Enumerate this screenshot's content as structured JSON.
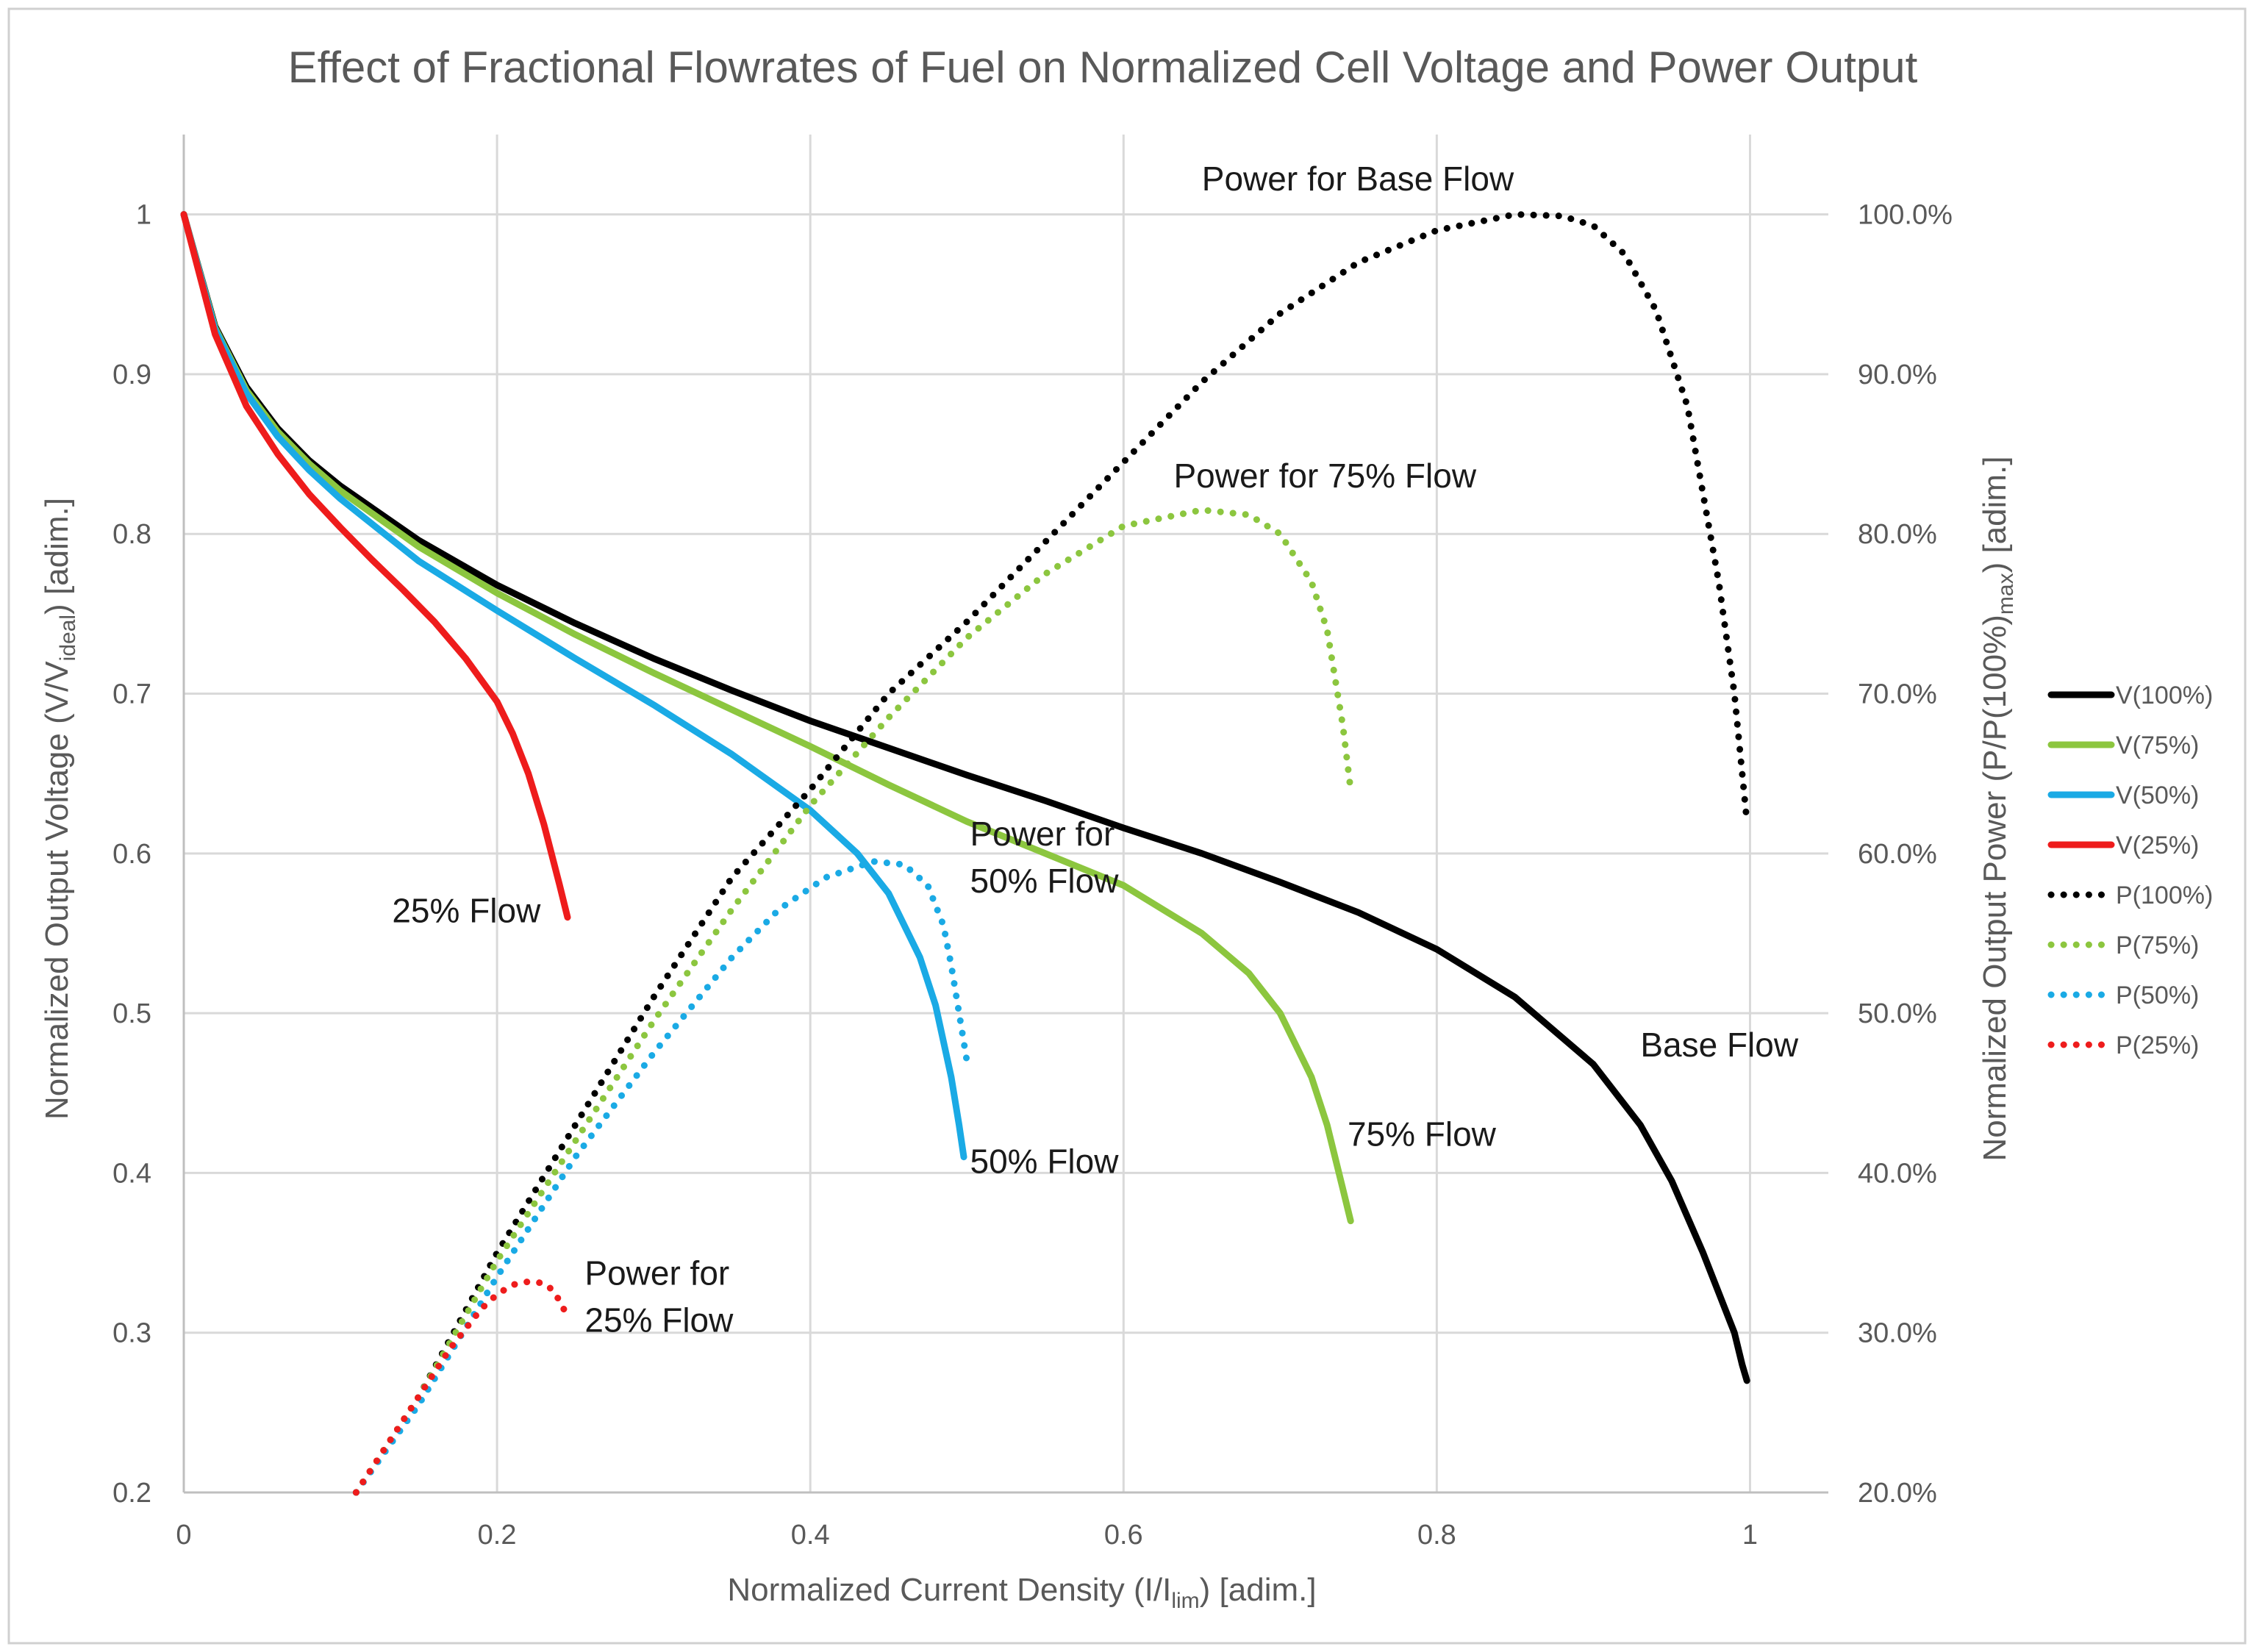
{
  "chart_data": {
    "type": "line",
    "title": "Effect of Fractional Flowrates of Fuel on Normalized Cell Voltage and Power Output",
    "xlabel": {
      "main": "Normalized Current Density (I/I",
      "sub": "lim",
      "tail": ") [adim.]"
    },
    "ylabel_left": {
      "main": "Normalized Output Voltage (V/V",
      "sub": "ideal",
      "tail": ")  [adim.]"
    },
    "ylabel_right": {
      "main": "Normalized Output Power (P/P(100%)",
      "sub": "max",
      "tail": ")  [adim.]"
    },
    "xlim": [
      0,
      1.05
    ],
    "ylim_left": [
      0.2,
      1.05
    ],
    "ylim_right": [
      20,
      105
    ],
    "x_ticks": [
      "0",
      "0.2",
      "0.4",
      "0.6",
      "0.8",
      "1"
    ],
    "x_tick_values": [
      0,
      0.2,
      0.4,
      0.6,
      0.8,
      1.0
    ],
    "y_left_ticks": [
      "0.2",
      "0.3",
      "0.4",
      "0.5",
      "0.6",
      "0.7",
      "0.8",
      "0.9",
      "1"
    ],
    "y_left_tick_values": [
      0.2,
      0.3,
      0.4,
      0.5,
      0.6,
      0.7,
      0.8,
      0.9,
      1.0
    ],
    "y_right_ticks": [
      "20.0%",
      "30.0%",
      "40.0%",
      "50.0%",
      "60.0%",
      "70.0%",
      "80.0%",
      "90.0%",
      "100.0%"
    ],
    "y_right_tick_values": [
      20,
      30,
      40,
      50,
      60,
      70,
      80,
      90,
      100
    ],
    "series": [
      {
        "name": "V(100%)",
        "axis": "left",
        "style": "solid",
        "color": "#000000",
        "x": [
          0,
          0.02,
          0.04,
          0.06,
          0.08,
          0.1,
          0.15,
          0.2,
          0.25,
          0.3,
          0.35,
          0.4,
          0.45,
          0.5,
          0.55,
          0.6,
          0.65,
          0.7,
          0.75,
          0.8,
          0.85,
          0.9,
          0.93,
          0.95,
          0.97,
          0.98,
          0.99,
          0.995,
          0.998
        ],
        "y": [
          1.0,
          0.93,
          0.892,
          0.866,
          0.846,
          0.83,
          0.796,
          0.768,
          0.744,
          0.722,
          0.702,
          0.683,
          0.666,
          0.649,
          0.633,
          0.616,
          0.6,
          0.582,
          0.563,
          0.54,
          0.51,
          0.468,
          0.43,
          0.395,
          0.35,
          0.325,
          0.3,
          0.28,
          0.27
        ]
      },
      {
        "name": "V(75%)",
        "axis": "left",
        "style": "solid",
        "color": "#8cc63f",
        "x": [
          0,
          0.02,
          0.04,
          0.06,
          0.08,
          0.1,
          0.15,
          0.2,
          0.25,
          0.3,
          0.35,
          0.4,
          0.45,
          0.5,
          0.55,
          0.6,
          0.65,
          0.68,
          0.7,
          0.72,
          0.73,
          0.74,
          0.745
        ],
        "y": [
          1.0,
          0.929,
          0.89,
          0.864,
          0.844,
          0.827,
          0.792,
          0.763,
          0.737,
          0.713,
          0.69,
          0.667,
          0.643,
          0.62,
          0.6,
          0.58,
          0.55,
          0.525,
          0.5,
          0.46,
          0.43,
          0.39,
          0.37
        ]
      },
      {
        "name": "V(50%)",
        "axis": "left",
        "style": "solid",
        "color": "#1aaae5",
        "x": [
          0,
          0.02,
          0.04,
          0.06,
          0.08,
          0.1,
          0.15,
          0.2,
          0.25,
          0.3,
          0.35,
          0.4,
          0.43,
          0.45,
          0.47,
          0.48,
          0.49,
          0.495,
          0.498
        ],
        "y": [
          1.0,
          0.928,
          0.888,
          0.861,
          0.84,
          0.822,
          0.783,
          0.752,
          0.722,
          0.693,
          0.662,
          0.627,
          0.6,
          0.575,
          0.535,
          0.505,
          0.46,
          0.43,
          0.41
        ]
      },
      {
        "name": "V(25%)",
        "axis": "left",
        "style": "solid",
        "color": "#ee1c1c",
        "x": [
          0,
          0.02,
          0.04,
          0.06,
          0.08,
          0.1,
          0.12,
          0.14,
          0.16,
          0.18,
          0.2,
          0.21,
          0.22,
          0.23,
          0.24,
          0.245
        ],
        "y": [
          1.0,
          0.925,
          0.88,
          0.85,
          0.825,
          0.804,
          0.784,
          0.765,
          0.745,
          0.722,
          0.695,
          0.675,
          0.65,
          0.618,
          0.58,
          0.56
        ]
      },
      {
        "name": "P(100%)",
        "axis": "right",
        "style": "dotted",
        "color": "#000000",
        "x": [
          0.11,
          0.15,
          0.2,
          0.25,
          0.3,
          0.35,
          0.4,
          0.45,
          0.5,
          0.55,
          0.6,
          0.65,
          0.7,
          0.75,
          0.8,
          0.85,
          0.88,
          0.9,
          0.92,
          0.94,
          0.96,
          0.98,
          0.99,
          0.998
        ],
        "y": [
          20,
          26,
          35,
          43,
          51,
          58.5,
          64,
          70,
          74.5,
          79.5,
          84.5,
          89.5,
          93.8,
          97,
          99,
          100,
          99.9,
          99.3,
          97.5,
          94,
          88,
          77,
          70,
          62
        ]
      },
      {
        "name": "P(75%)",
        "axis": "right",
        "style": "dotted",
        "color": "#8cc63f",
        "x": [
          0.11,
          0.15,
          0.2,
          0.25,
          0.3,
          0.35,
          0.4,
          0.45,
          0.5,
          0.55,
          0.6,
          0.65,
          0.68,
          0.7,
          0.72,
          0.73,
          0.74,
          0.745
        ],
        "y": [
          20,
          26,
          34.5,
          42,
          49.5,
          56.5,
          63,
          68.5,
          73.5,
          77.5,
          80.5,
          81.5,
          81.2,
          80,
          77,
          74,
          68,
          64
        ]
      },
      {
        "name": "P(50%)",
        "axis": "right",
        "style": "dotted",
        "color": "#1aaae5",
        "x": [
          0.11,
          0.15,
          0.2,
          0.25,
          0.3,
          0.35,
          0.38,
          0.41,
          0.44,
          0.46,
          0.475,
          0.485,
          0.49,
          0.495,
          0.5
        ],
        "y": [
          20,
          25.5,
          33.5,
          41,
          47.5,
          53.5,
          56.5,
          58.5,
          59.5,
          59.3,
          58,
          55.5,
          53,
          50,
          47
        ]
      },
      {
        "name": "P(25%)",
        "axis": "right",
        "style": "dotted",
        "color": "#ee1c1c",
        "x": [
          0.11,
          0.13,
          0.15,
          0.17,
          0.19,
          0.2,
          0.21,
          0.22,
          0.23,
          0.235,
          0.24,
          0.245
        ],
        "y": [
          20,
          23,
          26,
          29,
          31.5,
          32.4,
          33,
          33.2,
          33.1,
          32.7,
          32,
          31
        ]
      }
    ],
    "annotations": [
      {
        "lines": [
          "Power for Base Flow"
        ],
        "x": 0.65,
        "y_left": 1.015,
        "anchor": "start"
      },
      {
        "lines": [
          "Power for 75% Flow"
        ],
        "x": 0.632,
        "y_left": 0.829,
        "anchor": "start"
      },
      {
        "lines": [
          "Power for",
          "50% Flow"
        ],
        "x": 0.502,
        "y_left": 0.605,
        "anchor": "start"
      },
      {
        "lines": [
          "25% Flow"
        ],
        "x": 0.133,
        "y_left": 0.557,
        "anchor": "start"
      },
      {
        "lines": [
          "50% Flow"
        ],
        "x": 0.502,
        "y_left": 0.4,
        "anchor": "start"
      },
      {
        "lines": [
          "75% Flow"
        ],
        "x": 0.743,
        "y_left": 0.417,
        "anchor": "start"
      },
      {
        "lines": [
          "Base Flow"
        ],
        "x": 0.93,
        "y_left": 0.473,
        "anchor": "start"
      },
      {
        "lines": [
          "Power for",
          "25% Flow"
        ],
        "x": 0.256,
        "y_left": 0.33,
        "anchor": "start"
      }
    ],
    "legend": {
      "position": "right",
      "items": [
        "V(100%)",
        "V(75%)",
        "V(50%)",
        "V(25%)",
        "P(100%)",
        "P(75%)",
        "P(50%)",
        "P(25%)"
      ]
    }
  }
}
